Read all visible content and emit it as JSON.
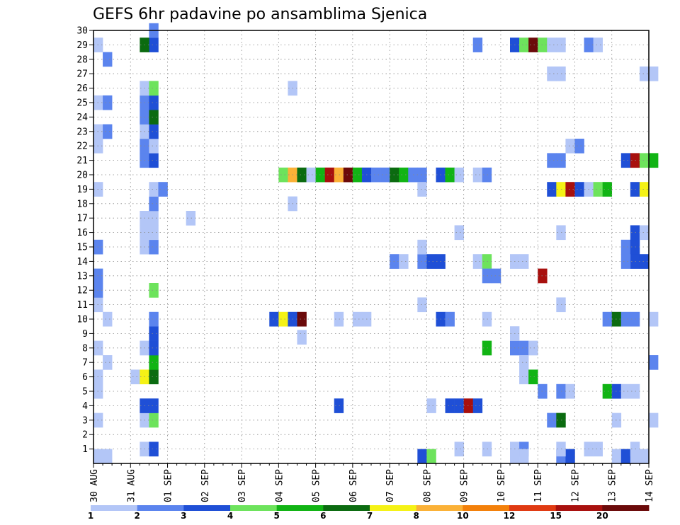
{
  "chart_data": {
    "type": "heatmap",
    "title": "GEFS 6hr padavine po ansamblima Sjenica",
    "xlabel": "",
    "ylabel": "",
    "x_tick_labels": [
      "30 AUG",
      "31 AUG",
      "01 SEP",
      "02 SEP",
      "03 SEP",
      "04 SEP",
      "05 SEP",
      "06 SEP",
      "07 SEP",
      "08 SEP",
      "09 SEP",
      "10 SEP",
      "11 SEP",
      "12 SEP",
      "13 SEP",
      "14 SEP"
    ],
    "y_tick_labels": [
      "1",
      "2",
      "3",
      "4",
      "5",
      "6",
      "7",
      "8",
      "9",
      "10",
      "11",
      "12",
      "13",
      "14",
      "15",
      "16",
      "17",
      "18",
      "19",
      "20",
      "21",
      "22",
      "23",
      "24",
      "25",
      "26",
      "27",
      "28",
      "29",
      "30"
    ],
    "grid": true,
    "colorbar": {
      "labels": [
        "1",
        "2",
        "3",
        "4",
        "5",
        "6",
        "7",
        "8",
        "10",
        "12",
        "15",
        "20"
      ],
      "colors": [
        "#b3c6f7",
        "#5b84ee",
        "#1f4fd6",
        "#6de35c",
        "#11b414",
        "#0b6b10",
        "#f5f216",
        "#fbb137",
        "#f3800a",
        "#e03a12",
        "#a8100e",
        "#6b0a0a"
      ]
    },
    "cells": [
      [
        0,
        0.5,
        1
      ],
      [
        1,
        0.5,
        1
      ],
      [
        0,
        3,
        1
      ],
      [
        0,
        5,
        1
      ],
      [
        0,
        6,
        1
      ],
      [
        1,
        7,
        1
      ],
      [
        0,
        8,
        1
      ],
      [
        1,
        10,
        1
      ],
      [
        0,
        11,
        1
      ],
      [
        0,
        12,
        2
      ],
      [
        0,
        13,
        2
      ],
      [
        0,
        15,
        2
      ],
      [
        0,
        19,
        1
      ],
      [
        0,
        22,
        1
      ],
      [
        0,
        23,
        1
      ],
      [
        1,
        23,
        2
      ],
      [
        0,
        25,
        1
      ],
      [
        1,
        25,
        2
      ],
      [
        1,
        28,
        2
      ],
      [
        0,
        29,
        1
      ],
      [
        5,
        1,
        1
      ],
      [
        6,
        1,
        3
      ],
      [
        5,
        3,
        1
      ],
      [
        6,
        3,
        4
      ],
      [
        5,
        4,
        3
      ],
      [
        6,
        4,
        3
      ],
      [
        4,
        6,
        1
      ],
      [
        5,
        6,
        7
      ],
      [
        6,
        6,
        6
      ],
      [
        6,
        7,
        5
      ],
      [
        5,
        8,
        1
      ],
      [
        6,
        8,
        3
      ],
      [
        6,
        9,
        3
      ],
      [
        6,
        10,
        2
      ],
      [
        6,
        12,
        4
      ],
      [
        5,
        15,
        1
      ],
      [
        6,
        15,
        2
      ],
      [
        5,
        16,
        1
      ],
      [
        6,
        16,
        1
      ],
      [
        5,
        17,
        1
      ],
      [
        6,
        17,
        1
      ],
      [
        6,
        18,
        2
      ],
      [
        6,
        19,
        1
      ],
      [
        7,
        19,
        2
      ],
      [
        5,
        21,
        2
      ],
      [
        6,
        21,
        3
      ],
      [
        5,
        22,
        2
      ],
      [
        6,
        22,
        1
      ],
      [
        5,
        23,
        1
      ],
      [
        6,
        23,
        3
      ],
      [
        5,
        24,
        2
      ],
      [
        6,
        24,
        6
      ],
      [
        5,
        25,
        2
      ],
      [
        6,
        25,
        3
      ],
      [
        5,
        26,
        1
      ],
      [
        6,
        26,
        4
      ],
      [
        6,
        29,
        3
      ],
      [
        5,
        29,
        6
      ],
      [
        6,
        30,
        2
      ],
      [
        10,
        17,
        1
      ],
      [
        19,
        10,
        3
      ],
      [
        20,
        10,
        7
      ],
      [
        21,
        10,
        3
      ],
      [
        22,
        10,
        12
      ],
      [
        22,
        8.75,
        1
      ],
      [
        21,
        18,
        1
      ],
      [
        21,
        26,
        1
      ],
      [
        20,
        20,
        4
      ],
      [
        21,
        20,
        8
      ],
      [
        22,
        20,
        6
      ],
      [
        23,
        20,
        1
      ],
      [
        24,
        20,
        5
      ],
      [
        25,
        20,
        11
      ],
      [
        26,
        20,
        8
      ],
      [
        27,
        20,
        12
      ],
      [
        28,
        20,
        5
      ],
      [
        29,
        20,
        3
      ],
      [
        30,
        20,
        2
      ],
      [
        31,
        20,
        2
      ],
      [
        32,
        20,
        6
      ],
      [
        33,
        20,
        5
      ],
      [
        34,
        20,
        2
      ],
      [
        35,
        20,
        2
      ],
      [
        37,
        20,
        3
      ],
      [
        38,
        20,
        5
      ],
      [
        39,
        20,
        1
      ],
      [
        41,
        20,
        1
      ],
      [
        42,
        20,
        2
      ],
      [
        26,
        4,
        3
      ],
      [
        26,
        10,
        1
      ],
      [
        28,
        10,
        1
      ],
      [
        29,
        10,
        1
      ],
      [
        32,
        14,
        2
      ],
      [
        33,
        14,
        1
      ],
      [
        35,
        14,
        2
      ],
      [
        36,
        14,
        3
      ],
      [
        37,
        14,
        3
      ],
      [
        35,
        15,
        1
      ],
      [
        35,
        11,
        1
      ],
      [
        35,
        19,
        1
      ],
      [
        37,
        10,
        3
      ],
      [
        38,
        10,
        2
      ],
      [
        35,
        0.5,
        3
      ],
      [
        36,
        0.5,
        4
      ],
      [
        36,
        4,
        1
      ],
      [
        38,
        4,
        3
      ],
      [
        39,
        4,
        3
      ],
      [
        40,
        4,
        11
      ],
      [
        41,
        4,
        3
      ],
      [
        39,
        1,
        1
      ],
      [
        39,
        16,
        1
      ],
      [
        42,
        1,
        1
      ],
      [
        41,
        14,
        1
      ],
      [
        42,
        14,
        4
      ],
      [
        42,
        13,
        2
      ],
      [
        43,
        13,
        2
      ],
      [
        42,
        10,
        1
      ],
      [
        42,
        8,
        5
      ],
      [
        41,
        29,
        2
      ],
      [
        45,
        1,
        1
      ],
      [
        46,
        1,
        2
      ],
      [
        45,
        0.5,
        1
      ],
      [
        46,
        0.5,
        1
      ],
      [
        45,
        8,
        2
      ],
      [
        46,
        8,
        2
      ],
      [
        47,
        8,
        1
      ],
      [
        45,
        9,
        1
      ],
      [
        46,
        7,
        1
      ],
      [
        46,
        6,
        1
      ],
      [
        47,
        6,
        5
      ],
      [
        45,
        14,
        1
      ],
      [
        46,
        14,
        1
      ],
      [
        48,
        13,
        11
      ],
      [
        45,
        29,
        3
      ],
      [
        46,
        29,
        4
      ],
      [
        47,
        29,
        12
      ],
      [
        48,
        29,
        4
      ],
      [
        49,
        29,
        1
      ],
      [
        50,
        29,
        1
      ],
      [
        49,
        27,
        1
      ],
      [
        50,
        27,
        1
      ],
      [
        49,
        21,
        2
      ],
      [
        50,
        21,
        2
      ],
      [
        49,
        19,
        3
      ],
      [
        50,
        19,
        7
      ],
      [
        51,
        19,
        11
      ],
      [
        52,
        19,
        3
      ],
      [
        53,
        19,
        1
      ],
      [
        54,
        19,
        4
      ],
      [
        55,
        19,
        5
      ],
      [
        51,
        22,
        1
      ],
      [
        52,
        22,
        2
      ],
      [
        50,
        16,
        1
      ],
      [
        50,
        11,
        1
      ],
      [
        50,
        5,
        2
      ],
      [
        51,
        5,
        1
      ],
      [
        48,
        5,
        2
      ],
      [
        50,
        0.5,
        2
      ],
      [
        51,
        0.5,
        3
      ],
      [
        49,
        3,
        2
      ],
      [
        50,
        3,
        6
      ],
      [
        50,
        1,
        1
      ],
      [
        53,
        1,
        1
      ],
      [
        54,
        1,
        1
      ],
      [
        53,
        29,
        2
      ],
      [
        54,
        29,
        1
      ],
      [
        55,
        10,
        2
      ],
      [
        56,
        10,
        6
      ],
      [
        57,
        10,
        2
      ],
      [
        58,
        10,
        2
      ],
      [
        55,
        5,
        5
      ],
      [
        56,
        5,
        3
      ],
      [
        57,
        5,
        1
      ],
      [
        58,
        5,
        1
      ],
      [
        56,
        3,
        1
      ],
      [
        56,
        0.5,
        1
      ],
      [
        57,
        0.5,
        3
      ],
      [
        58,
        0.5,
        1
      ],
      [
        59,
        0.5,
        1
      ],
      [
        58,
        1,
        1
      ],
      [
        57,
        21,
        3
      ],
      [
        58,
        21,
        11
      ],
      [
        59,
        21,
        4
      ],
      [
        60,
        21,
        5
      ],
      [
        58,
        19,
        3
      ],
      [
        59,
        19,
        7
      ],
      [
        57,
        15,
        2
      ],
      [
        58,
        15,
        3
      ],
      [
        58,
        16,
        3
      ],
      [
        59,
        16,
        1
      ],
      [
        58,
        14,
        3
      ],
      [
        57,
        14,
        2
      ],
      [
        59,
        14,
        3
      ],
      [
        59,
        27,
        1
      ],
      [
        60,
        27,
        1
      ],
      [
        60,
        10,
        1
      ],
      [
        60,
        3,
        1
      ],
      [
        60,
        7,
        2
      ]
    ]
  }
}
